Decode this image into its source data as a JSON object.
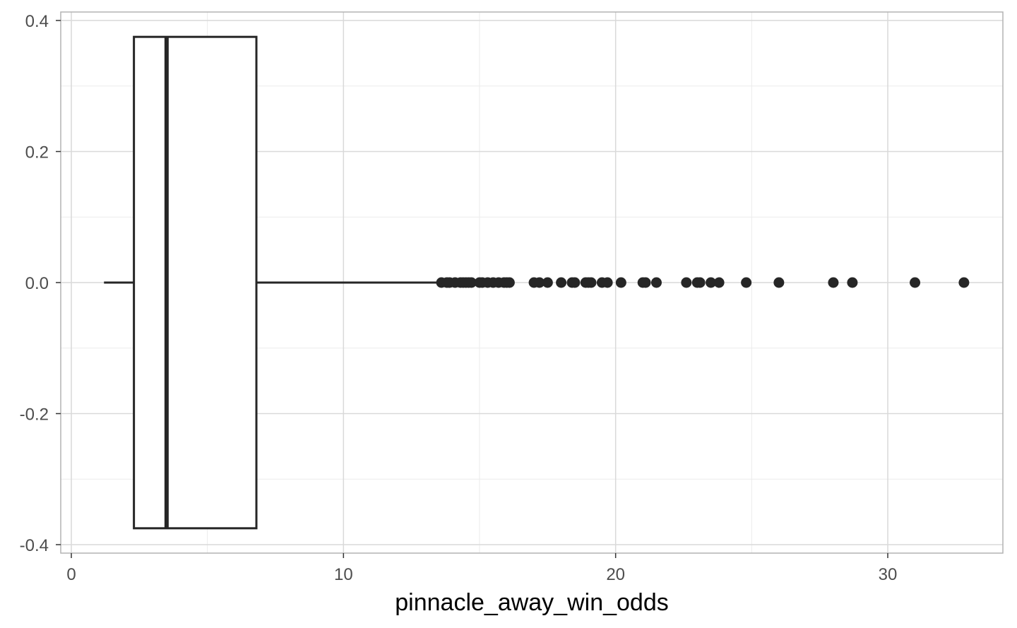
{
  "chart_data": {
    "type": "boxplot",
    "orientation": "horizontal",
    "title": "",
    "xlabel": "pinnacle_away_win_odds",
    "ylabel": "",
    "xlim": [
      -0.4,
      34.2
    ],
    "ylim": [
      -0.4,
      0.4
    ],
    "x_ticks": [
      0,
      10,
      20,
      30
    ],
    "y_ticks": [
      -0.4,
      -0.2,
      0.0,
      0.2,
      0.4
    ],
    "x_tick_labels": [
      "0",
      "10",
      "20",
      "30"
    ],
    "y_tick_labels": [
      "-0.4",
      "-0.2",
      "0.0",
      "0.2",
      "0.4"
    ],
    "grid": true,
    "box": {
      "y_center": 0.0,
      "y_half_height": 0.375,
      "whisker_low": 1.2,
      "q1": 2.3,
      "median": 3.5,
      "q3": 6.8,
      "whisker_high": 13.5
    },
    "outliers": [
      13.6,
      13.8,
      13.9,
      14.1,
      14.3,
      14.4,
      14.5,
      14.6,
      14.7,
      15.0,
      15.1,
      15.3,
      15.5,
      15.7,
      15.9,
      16.0,
      16.1,
      17.0,
      17.2,
      17.5,
      18.0,
      18.4,
      18.5,
      18.9,
      19.0,
      19.1,
      19.5,
      19.7,
      20.2,
      21.0,
      21.1,
      21.5,
      22.6,
      23.0,
      23.1,
      23.5,
      23.8,
      24.8,
      26.0,
      28.0,
      28.7,
      31.0,
      32.8
    ],
    "colors": {
      "panel_border": "#b3b3b3",
      "grid_major": "#d9d9d9",
      "grid_minor": "#ebebeb",
      "box_line": "#262626",
      "outlier": "#262626",
      "tick_text": "#4d4d4d"
    }
  }
}
